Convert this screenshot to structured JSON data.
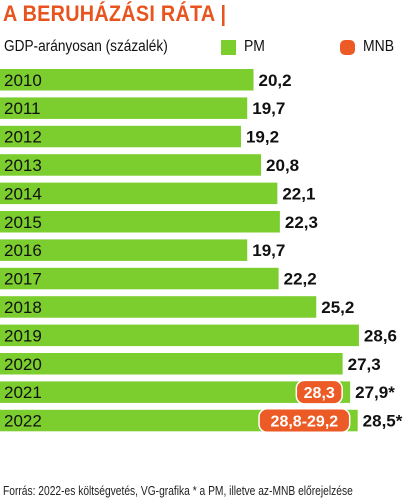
{
  "title": "A BERUHÁZÁSI RÁTA |",
  "subtitle": "GDP-arányosan (százalék)",
  "legend": [
    {
      "label": "PM",
      "color": "#7ccd2e"
    },
    {
      "label": "MNB",
      "color": "#ec5a25"
    }
  ],
  "source": "Forrás: 2022-es költségvetés, VG-grafika * a PM, illetve az-MNB előrejelzése",
  "chart_data": {
    "type": "bar",
    "orientation": "horizontal",
    "categories": [
      "2010",
      "2011",
      "2012",
      "2013",
      "2014",
      "2015",
      "2016",
      "2017",
      "2018",
      "2019",
      "2020",
      "2021",
      "2022"
    ],
    "series": [
      {
        "name": "PM",
        "color": "#7ccd2e",
        "values": [
          20.2,
          19.7,
          19.2,
          20.8,
          22.1,
          22.3,
          19.7,
          22.2,
          25.2,
          28.6,
          27.3,
          27.9,
          28.5
        ],
        "labels": [
          "20,2",
          "19,7",
          "19,2",
          "20,8",
          "22,1",
          "22,3",
          "19,7",
          "22,2",
          "25,2",
          "28,6",
          "27,3",
          "27,9*",
          "28,5*"
        ]
      }
    ],
    "annotations": [
      {
        "category": "2021",
        "series": "MNB",
        "label": "28,3",
        "color": "#ec5a25"
      },
      {
        "category": "2022",
        "series": "MNB",
        "label": "28,8-29,2",
        "color": "#ec5a25"
      }
    ]
  }
}
